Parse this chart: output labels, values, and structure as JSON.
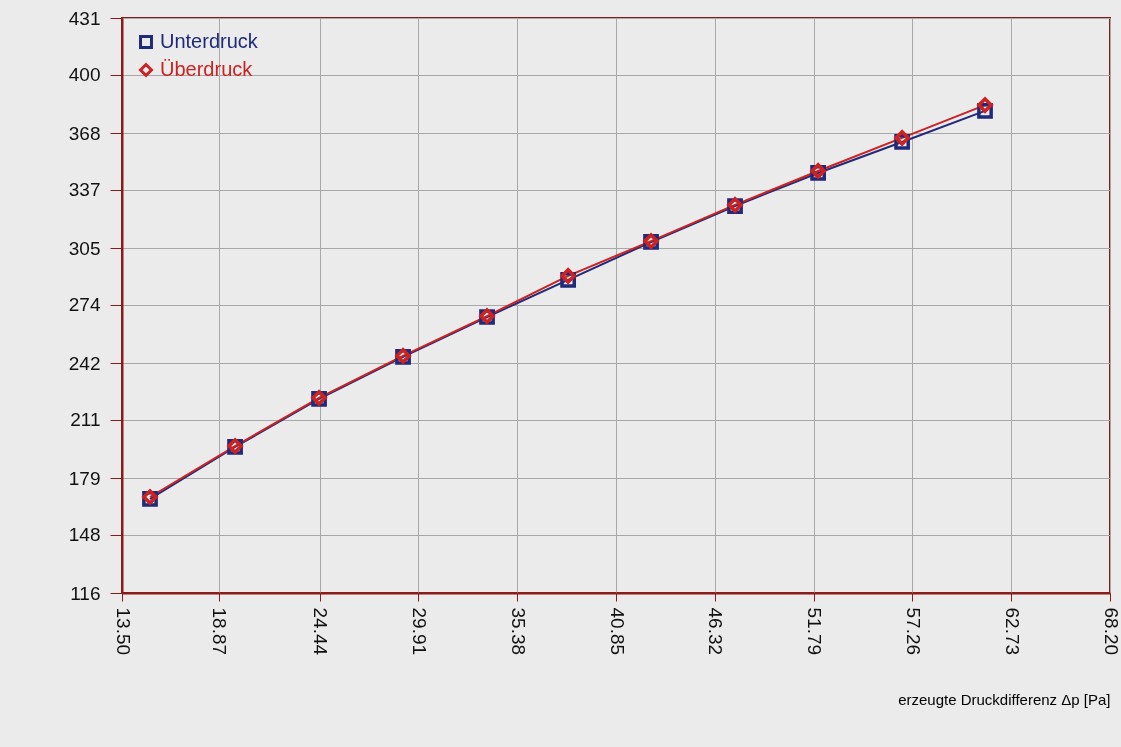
{
  "chart_data": {
    "type": "line",
    "xlabel": "erzeugte Druckdifferenz Δp [Pa]",
    "x": [
      15.05,
      19.76,
      24.41,
      29.06,
      33.71,
      38.2,
      42.79,
      47.44,
      52.04,
      56.69,
      61.28
    ],
    "series": [
      {
        "name": "Unterdruck",
        "color": "#1f2a7a",
        "marker": "square",
        "values": [
          167.5,
          196,
          222.3,
          245.3,
          267.2,
          287.5,
          308.3,
          328,
          346.1,
          363.1,
          380.1
        ]
      },
      {
        "name": "Überdruck",
        "color": "#cc2222",
        "marker": "diamond",
        "values": [
          168.6,
          196.5,
          222.9,
          245.9,
          267.7,
          289.7,
          308.8,
          328.6,
          347.2,
          365.3,
          383.3
        ]
      }
    ],
    "xlim": [
      13.5,
      68.2
    ],
    "xticks": [
      {
        "value": 13.5,
        "label": "13.50"
      },
      18.87,
      24.44,
      29.91,
      35.38,
      40.85,
      46.32,
      51.79,
      57.26,
      62.73,
      {
        "value": 68.2,
        "label": "68.20"
      }
    ],
    "ylim": [
      116,
      431
    ],
    "yticks": [
      116,
      148,
      179,
      211,
      242,
      274,
      305,
      337,
      368,
      400,
      431
    ],
    "grid": true,
    "legend": "top left"
  }
}
